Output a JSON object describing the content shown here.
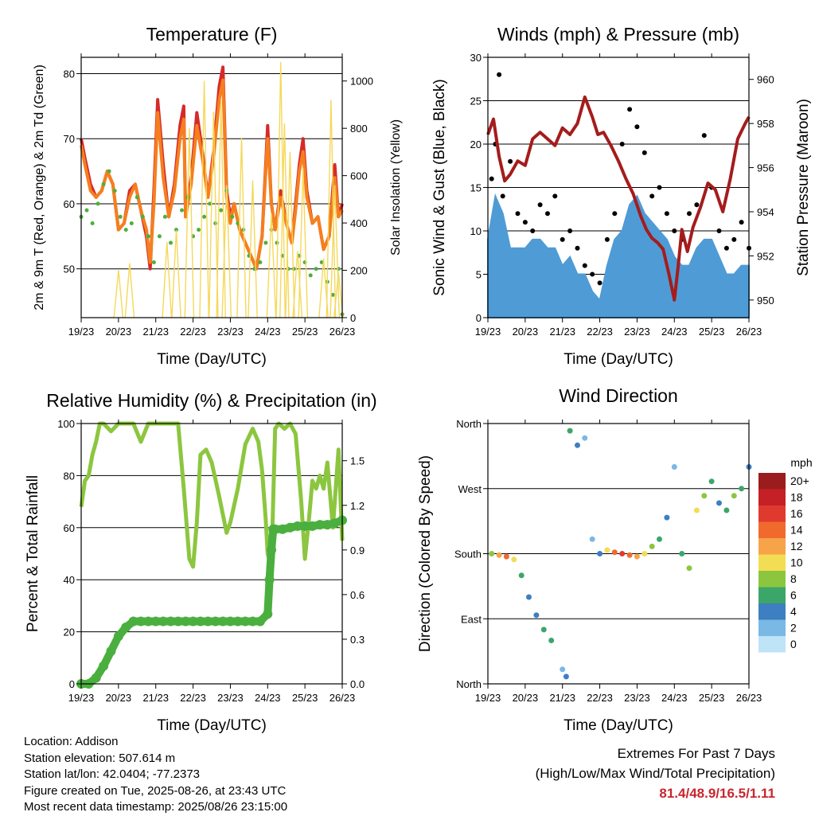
{
  "chart_data": [
    {
      "type": "line",
      "title": "Temperature (F)",
      "xlabel": "Time (Day/UTC)",
      "ylabel": "2m & 9m T (Red, Orange) & 2m Td (Green)",
      "y2label": "Solar Insolation (Yellow)",
      "categories": [
        "19/23",
        "20/23",
        "21/23",
        "22/23",
        "23/23",
        "24/23",
        "25/23",
        "26/23"
      ],
      "ylim": [
        42.5,
        82.5
      ],
      "yticks": [
        50,
        60,
        70,
        80
      ],
      "y2lim": [
        0,
        1100
      ],
      "y2ticks": [
        0,
        200,
        400,
        600,
        800,
        1000
      ],
      "series": [
        {
          "color": "#d62a2a",
          "axis": "left",
          "style": "line",
          "x": [
            0,
            0.1,
            0.25,
            0.4,
            0.55,
            0.7,
            0.85,
            1.0,
            1.15,
            1.3,
            1.45,
            1.6,
            1.75,
            1.85,
            1.95,
            2.05,
            2.2,
            2.35,
            2.5,
            2.65,
            2.75,
            2.8,
            2.95,
            3.1,
            3.25,
            3.4,
            3.55,
            3.7,
            3.8,
            3.9,
            4.0,
            4.1,
            4.25,
            4.4,
            4.55,
            4.7,
            4.85,
            4.95,
            5.0,
            5.1,
            5.2,
            5.35,
            5.5,
            5.65,
            5.75,
            5.85,
            5.95,
            6.05,
            6.2,
            6.35,
            6.5,
            6.65,
            6.8,
            6.9,
            7.0
          ],
          "y": [
            70,
            67,
            63,
            61,
            62,
            65,
            63,
            56,
            57,
            62,
            63,
            59,
            55,
            50,
            62,
            76,
            66,
            58,
            63,
            72,
            75,
            58,
            64,
            74,
            68,
            61,
            68,
            78,
            81,
            62,
            58,
            60,
            56,
            54,
            52,
            50,
            55,
            66,
            72,
            60,
            56,
            62,
            57,
            54,
            60,
            66,
            70,
            62,
            57,
            58,
            53,
            55,
            66,
            58,
            60
          ]
        },
        {
          "color": "#f57f1e",
          "axis": "left",
          "style": "line",
          "x": [
            0,
            0.1,
            0.25,
            0.4,
            0.55,
            0.7,
            0.85,
            1.0,
            1.15,
            1.3,
            1.45,
            1.6,
            1.75,
            1.85,
            1.95,
            2.05,
            2.2,
            2.35,
            2.5,
            2.65,
            2.75,
            2.8,
            2.95,
            3.1,
            3.25,
            3.4,
            3.55,
            3.7,
            3.8,
            3.9,
            4.0,
            4.1,
            4.25,
            4.4,
            4.55,
            4.7,
            4.85,
            4.95,
            5.0,
            5.1,
            5.2,
            5.35,
            5.5,
            5.65,
            5.75,
            5.85,
            5.95,
            6.05,
            6.2,
            6.35,
            6.5,
            6.65,
            6.8,
            6.9,
            7.0
          ],
          "y": [
            69,
            66,
            62,
            61,
            62,
            65,
            63,
            56,
            57,
            61,
            63,
            59,
            56,
            51,
            60,
            74,
            64,
            58,
            62,
            70,
            73,
            58,
            63,
            72,
            67,
            61,
            67,
            76,
            79,
            61,
            57,
            60,
            56,
            54,
            52,
            50,
            55,
            65,
            70,
            60,
            56,
            61,
            57,
            54,
            59,
            65,
            68,
            61,
            57,
            58,
            53,
            55,
            64,
            58,
            59
          ]
        },
        {
          "color": "#4caf3c",
          "axis": "left",
          "style": "dots",
          "x": [
            0,
            0.15,
            0.3,
            0.45,
            0.6,
            0.75,
            0.9,
            1.05,
            1.2,
            1.35,
            1.5,
            1.65,
            1.8,
            1.95,
            2.1,
            2.25,
            2.4,
            2.55,
            2.7,
            2.85,
            3.0,
            3.15,
            3.3,
            3.45,
            3.6,
            3.75,
            3.9,
            4.05,
            4.2,
            4.35,
            4.5,
            4.65,
            4.8,
            4.95,
            5.1,
            5.25,
            5.4,
            5.55,
            5.7,
            5.85,
            6.0,
            6.15,
            6.3,
            6.45,
            6.6,
            6.75,
            6.9,
            7.0
          ],
          "y": [
            58,
            59,
            57,
            60,
            63,
            65,
            62,
            58,
            56,
            57,
            61,
            58,
            55,
            51,
            55,
            58,
            54,
            56,
            59,
            61,
            55,
            56,
            58,
            60,
            57,
            59,
            62,
            58,
            57,
            56,
            52,
            50,
            51,
            54,
            56,
            54,
            52,
            50,
            50,
            52,
            51,
            49,
            50,
            51,
            48,
            46,
            50,
            43
          ]
        },
        {
          "color": "#f5d85a",
          "axis": "right",
          "style": "spikes",
          "x": [
            1.0,
            1.3,
            2.3,
            2.55,
            2.9,
            3.3,
            3.55,
            3.75,
            3.9,
            4.3,
            4.6,
            5.1,
            5.35,
            5.45,
            5.6,
            5.8,
            5.95,
            6.5,
            6.7,
            6.8,
            6.9
          ],
          "y": [
            200,
            230,
            320,
            370,
            800,
            1000,
            870,
            920,
            560,
            760,
            580,
            440,
            1080,
            820,
            700,
            280,
            630,
            250,
            920,
            560,
            190
          ]
        }
      ]
    },
    {
      "type": "scatter",
      "title": "Winds (mph) & Pressure (mb)",
      "xlabel": "Time (Day/UTC)",
      "ylabel": "Sonic Wind & Gust (Blue, Black)",
      "y2label": "Station Pressure (Maroon)",
      "categories": [
        "19/23",
        "20/23",
        "21/23",
        "22/23",
        "23/23",
        "24/23",
        "25/23",
        "26/23"
      ],
      "ylim": [
        0,
        30
      ],
      "yticks": [
        0,
        5,
        10,
        15,
        20,
        25,
        30
      ],
      "y2lim": [
        949.2,
        961
      ],
      "y2ticks": [
        950,
        952,
        954,
        956,
        958,
        960
      ],
      "series": [
        {
          "color": "#000000",
          "axis": "left",
          "style": "scatter",
          "x": [
            0.1,
            0.2,
            0.3,
            0.4,
            0.6,
            0.8,
            1.0,
            1.2,
            1.4,
            1.6,
            1.8,
            2.0,
            2.2,
            2.4,
            2.6,
            2.8,
            3.0,
            3.2,
            3.4,
            3.6,
            3.8,
            4.0,
            4.2,
            4.4,
            4.6,
            4.8,
            5.0,
            5.2,
            5.4,
            5.6,
            5.8,
            6.0,
            6.2,
            6.4,
            6.6,
            6.8,
            7.0
          ],
          "y": [
            16,
            20,
            28,
            14,
            18,
            12,
            11,
            10,
            13,
            12,
            14,
            9,
            10,
            8,
            6,
            5,
            4,
            9,
            12,
            20,
            24,
            22,
            19,
            14,
            15,
            12,
            10,
            9,
            12,
            13,
            21,
            15,
            10,
            8,
            9,
            11,
            8
          ]
        },
        {
          "color": "#4f9bd6",
          "axis": "left",
          "style": "area",
          "x": [
            0,
            0.2,
            0.4,
            0.6,
            0.8,
            1.0,
            1.2,
            1.4,
            1.6,
            1.8,
            2.0,
            2.2,
            2.4,
            2.6,
            2.8,
            3.0,
            3.2,
            3.4,
            3.6,
            3.8,
            4.0,
            4.2,
            4.4,
            4.6,
            4.8,
            5.0,
            5.2,
            5.4,
            5.6,
            5.8,
            6.0,
            6.2,
            6.4,
            6.6,
            6.8,
            7.0
          ],
          "y": [
            9,
            14,
            12,
            8,
            8,
            8,
            9,
            9,
            8,
            8,
            6,
            7,
            5,
            5,
            3,
            2,
            6,
            9,
            10,
            13,
            14,
            12,
            11,
            10,
            9,
            7,
            6,
            6,
            8,
            9,
            9,
            7,
            5,
            5,
            6,
            6
          ]
        },
        {
          "color": "#a51c1c",
          "axis": "right",
          "style": "line",
          "x": [
            0,
            0.15,
            0.3,
            0.45,
            0.6,
            0.8,
            1.0,
            1.2,
            1.4,
            1.6,
            1.8,
            2.0,
            2.2,
            2.4,
            2.6,
            2.8,
            2.95,
            3.1,
            3.3,
            3.5,
            3.7,
            3.9,
            4.1,
            4.25,
            4.4,
            4.55,
            4.7,
            4.85,
            5.0,
            5.1,
            5.2,
            5.35,
            5.5,
            5.7,
            5.9,
            6.1,
            6.3,
            6.5,
            6.7,
            6.9,
            7.0
          ],
          "y": [
            957.5,
            958.2,
            956.5,
            955.4,
            955.7,
            956.3,
            956.1,
            957.3,
            957.6,
            957.3,
            957.0,
            957.8,
            957.5,
            958.0,
            959.2,
            958.3,
            957.5,
            957.6,
            957.0,
            956.3,
            955.5,
            954.8,
            953.8,
            953.2,
            952.8,
            952.6,
            952.3,
            951.2,
            950,
            951.5,
            953.2,
            952.2,
            953.3,
            954.2,
            955.3,
            955.0,
            954.0,
            955.5,
            957.3,
            958.0,
            958.3
          ]
        }
      ]
    },
    {
      "type": "line",
      "title": "Relative Humidity (%) & Precipitation (in)",
      "xlabel": "Time (Day/UTC)",
      "ylabel": "Percent & Total Rainfall",
      "categories": [
        "19/23",
        "20/23",
        "21/23",
        "22/23",
        "23/23",
        "24/23",
        "25/23",
        "26/23"
      ],
      "ylim": [
        0,
        100
      ],
      "yticks": [
        0,
        20,
        40,
        60,
        80,
        100
      ],
      "y2lim": [
        0,
        1.75
      ],
      "y2ticks": [
        "0.0",
        "0.3",
        "0.6",
        "0.9",
        "1.2",
        "1.5"
      ],
      "series": [
        {
          "color": "#8cc63f",
          "axis": "left",
          "style": "line",
          "x": [
            0,
            0.1,
            0.2,
            0.3,
            0.4,
            0.5,
            0.6,
            0.8,
            1.0,
            1.2,
            1.4,
            1.6,
            1.8,
            2.0,
            2.2,
            2.4,
            2.6,
            2.75,
            2.9,
            3.0,
            3.1,
            3.2,
            3.35,
            3.5,
            3.7,
            3.9,
            4.0,
            4.2,
            4.4,
            4.6,
            4.75,
            4.85,
            4.95,
            5.0,
            5.1,
            5.2,
            5.3,
            5.45,
            5.6,
            5.75,
            5.9,
            6.0,
            6.1,
            6.2,
            6.3,
            6.4,
            6.5,
            6.6,
            6.75,
            6.9,
            7.0
          ],
          "y": [
            68,
            78,
            80,
            88,
            93,
            100,
            100,
            97,
            100,
            100,
            100,
            93,
            100,
            100,
            100,
            100,
            100,
            75,
            48,
            45,
            62,
            88,
            90,
            85,
            72,
            58,
            62,
            75,
            92,
            98,
            93,
            82,
            63,
            50,
            45,
            98,
            100,
            98,
            100,
            96,
            70,
            48,
            62,
            78,
            75,
            80,
            75,
            85,
            60,
            90,
            55
          ]
        },
        {
          "color": "#4aaf3e",
          "axis": "right",
          "style": "dots",
          "x": [
            0,
            0.2,
            0.4,
            0.6,
            0.8,
            1.0,
            1.2,
            1.4,
            1.6,
            1.8,
            2.0,
            2.2,
            2.4,
            2.6,
            2.8,
            3.0,
            3.2,
            3.4,
            3.6,
            3.8,
            4.0,
            4.2,
            4.4,
            4.6,
            4.8,
            5.0,
            5.05,
            5.1,
            5.15,
            5.2,
            5.4,
            5.6,
            5.8,
            6.0,
            6.2,
            6.4,
            6.6,
            6.8,
            7.0
          ],
          "y": [
            0,
            0.0,
            0.04,
            0.12,
            0.22,
            0.32,
            0.38,
            0.42,
            0.42,
            0.42,
            0.42,
            0.42,
            0.42,
            0.42,
            0.42,
            0.42,
            0.42,
            0.42,
            0.42,
            0.42,
            0.42,
            0.42,
            0.42,
            0.42,
            0.42,
            0.47,
            0.7,
            0.9,
            1.04,
            1.04,
            1.04,
            1.05,
            1.06,
            1.06,
            1.06,
            1.07,
            1.07,
            1.08,
            1.1
          ]
        }
      ]
    },
    {
      "type": "scatter",
      "title": "Wind Direction",
      "xlabel": "Time (Day/UTC)",
      "ylabel": "Direction (Colored By Speed)",
      "categories": [
        "19/23",
        "20/23",
        "21/23",
        "22/23",
        "23/23",
        "24/23",
        "25/23",
        "26/23"
      ],
      "ylim": [
        0,
        360
      ],
      "yticks": [
        "North",
        "East",
        "South",
        "West",
        "North"
      ],
      "series": [
        {
          "style": "colored-scatter",
          "x": [
            0.1,
            0.3,
            0.5,
            0.7,
            0.9,
            1.1,
            1.3,
            1.5,
            1.7,
            2.0,
            2.1,
            2.2,
            2.4,
            2.6,
            2.8,
            3.0,
            3.2,
            3.4,
            3.6,
            3.8,
            4.0,
            4.2,
            4.4,
            4.6,
            4.8,
            5.0,
            5.2,
            5.4,
            5.6,
            5.8,
            6.0,
            6.2,
            6.4,
            6.6,
            6.8,
            7.0
          ],
          "y": [
            180,
            178,
            176,
            172,
            150,
            120,
            95,
            75,
            60,
            20,
            10,
            350,
            330,
            340,
            200,
            180,
            185,
            182,
            180,
            178,
            176,
            180,
            190,
            200,
            230,
            300,
            180,
            160,
            240,
            260,
            280,
            250,
            240,
            260,
            270,
            300
          ],
          "speed": [
            8,
            12,
            14,
            10,
            6,
            4,
            4,
            6,
            5,
            2,
            3,
            6,
            4,
            2,
            2,
            4,
            10,
            14,
            16,
            14,
            12,
            10,
            8,
            6,
            4,
            2,
            6,
            8,
            10,
            8,
            6,
            4,
            6,
            8,
            6,
            4
          ]
        }
      ],
      "legend": {
        "title": "mph",
        "labels": [
          "20+",
          "18",
          "16",
          "14",
          "12",
          "10",
          "8",
          "6",
          "4",
          "2",
          "0"
        ],
        "colors": [
          "#9b1c1c",
          "#c42026",
          "#e03a2f",
          "#f06a2e",
          "#f7a34a",
          "#f2dd55",
          "#8cc63f",
          "#3ca66a",
          "#3d7fc0",
          "#7ab8e5",
          "#bfe3f7"
        ]
      }
    }
  ],
  "info": {
    "location": "Location: Addison",
    "elevation": "Station elevation: 507.614 m",
    "latlon": "Station lat/lon: 42.0404; -77.2373",
    "created": "Figure created on Tue, 2025-08-26, at 23:43 UTC",
    "recent": "Most recent data timestamp: 2025/08/26 23:15:00"
  },
  "extremes": {
    "line1": "Extremes For Past 7 Days",
    "line2": "(High/Low/Max Wind/Total Precipitation)",
    "values": "81.4/48.9/16.5/1.11"
  }
}
